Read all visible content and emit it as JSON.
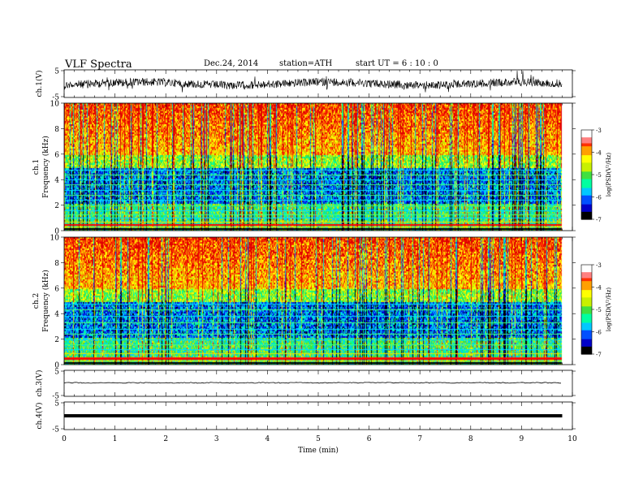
{
  "header": {
    "title": "VLF  Spectra",
    "date": "Dec.24, 2014",
    "station": "station=ATH",
    "start": "start  UT  =   6  : 10 : 0"
  },
  "chart_data": [
    {
      "id": "ch1-wave",
      "type": "line",
      "ylabel": "ch.1(V)",
      "ylim": [
        -5,
        5
      ],
      "yticks": [
        "5",
        "-5"
      ],
      "baseline": 0,
      "xlim": [
        0,
        10
      ],
      "data_end_min": 9.8,
      "description_color": "#000000"
    },
    {
      "id": "ch1-spectrogram",
      "type": "heatmap",
      "ylabel": "Frequency (kHz)",
      "ylabel2": "ch.1",
      "ylim": [
        0,
        10
      ],
      "yticks": [
        "0",
        "2",
        "4",
        "6",
        "8",
        "10"
      ],
      "xlim": [
        0,
        10
      ],
      "data_end_min": 9.8,
      "colorbar": {
        "label": "log(PSD(V²/Hz)",
        "range": [
          -7,
          -3
        ],
        "ticks": [
          "-3",
          "-4",
          "-5",
          "-6",
          "-7"
        ]
      },
      "bands_khz": [
        0.3,
        0.5,
        0.7,
        1.0,
        1.3,
        1.6,
        2.0,
        2.4,
        2.8,
        3.2,
        3.6,
        4.0,
        4.4,
        4.8
      ]
    },
    {
      "id": "ch2-spectrogram",
      "type": "heatmap",
      "ylabel": "Frequency (kHz)",
      "ylabel2": "ch.2",
      "ylim": [
        0,
        10
      ],
      "yticks": [
        "0",
        "2",
        "4",
        "6",
        "8",
        "10"
      ],
      "xlim": [
        0,
        10
      ],
      "data_end_min": 9.8,
      "colorbar": {
        "label": "log(PSD(V²/Hz)",
        "range": [
          -7,
          -3
        ],
        "ticks": [
          "-3",
          "-4",
          "-5",
          "-6",
          "-7"
        ]
      },
      "bands_khz": [
        0.3,
        0.6,
        0.9,
        1.2,
        1.6,
        2.0,
        2.4,
        2.8,
        3.3,
        3.8,
        4.3,
        4.8
      ]
    },
    {
      "id": "ch3-wave",
      "type": "line",
      "ylabel": "ch.3(V)",
      "ylim": [
        -5,
        5
      ],
      "yticks": [
        "5",
        "-5"
      ],
      "level": 0.2,
      "xlim": [
        0,
        10
      ],
      "data_end_min": 9.8
    },
    {
      "id": "ch4-wave",
      "type": "line",
      "ylabel": "ch.4(V)",
      "ylim": [
        -5,
        5
      ],
      "yticks": [
        "5",
        "-5"
      ],
      "level": 0,
      "xlim": [
        0,
        10
      ],
      "data_end_min": 9.8,
      "xlabel": "Time  (min)",
      "xticks": [
        "0",
        "1",
        "2",
        "3",
        "4",
        "5",
        "6",
        "7",
        "8",
        "9",
        "10"
      ]
    }
  ],
  "colormap": [
    "#000000",
    "#0000c8",
    "#0050ff",
    "#00c8ff",
    "#00ffa0",
    "#40e040",
    "#c8f000",
    "#ffff00",
    "#ffa000",
    "#ff3000",
    "#e00000",
    "#ffffff"
  ]
}
